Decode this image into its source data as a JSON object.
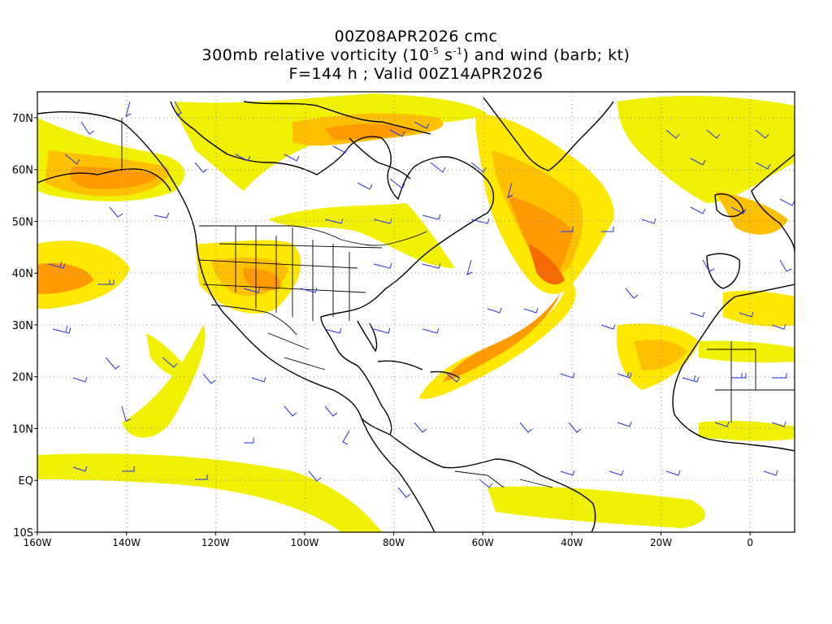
{
  "title": {
    "line1": "00Z08APR2026 cmc",
    "line2_a": "300mb relative vorticity (10",
    "line2_exp1": "-5",
    "line2_b": " s",
    "line2_exp2": "-1",
    "line2_c": ") and wind (barb; kt)",
    "line3": "F=144 h ; Valid 00Z14APR2026"
  },
  "axes": {
    "lat_labels": [
      "70N",
      "60N",
      "50N",
      "40N",
      "30N",
      "20N",
      "10N",
      "EQ",
      "10S"
    ],
    "lat_values": [
      70,
      60,
      50,
      40,
      30,
      20,
      10,
      0,
      -10
    ],
    "lon_labels": [
      "160W",
      "140W",
      "120W",
      "100W",
      "80W",
      "60W",
      "40W",
      "20W",
      "0"
    ],
    "lon_values": [
      -160,
      -140,
      -120,
      -100,
      -80,
      -60,
      -40,
      -20,
      0
    ],
    "lon_range": [
      -160,
      10
    ],
    "lat_range": [
      -10,
      75
    ],
    "grid": "dotted"
  },
  "colors": {
    "shade_light": "#f0f000",
    "shade_yellow": "#ffe800",
    "shade_gold": "#ffc000",
    "shade_orange": "#ff9a00",
    "shade_dark": "#f56a00",
    "shade_red": "#e84800",
    "coastline": "#000000",
    "barb": "#2233ee",
    "grid": "#888888"
  }
}
